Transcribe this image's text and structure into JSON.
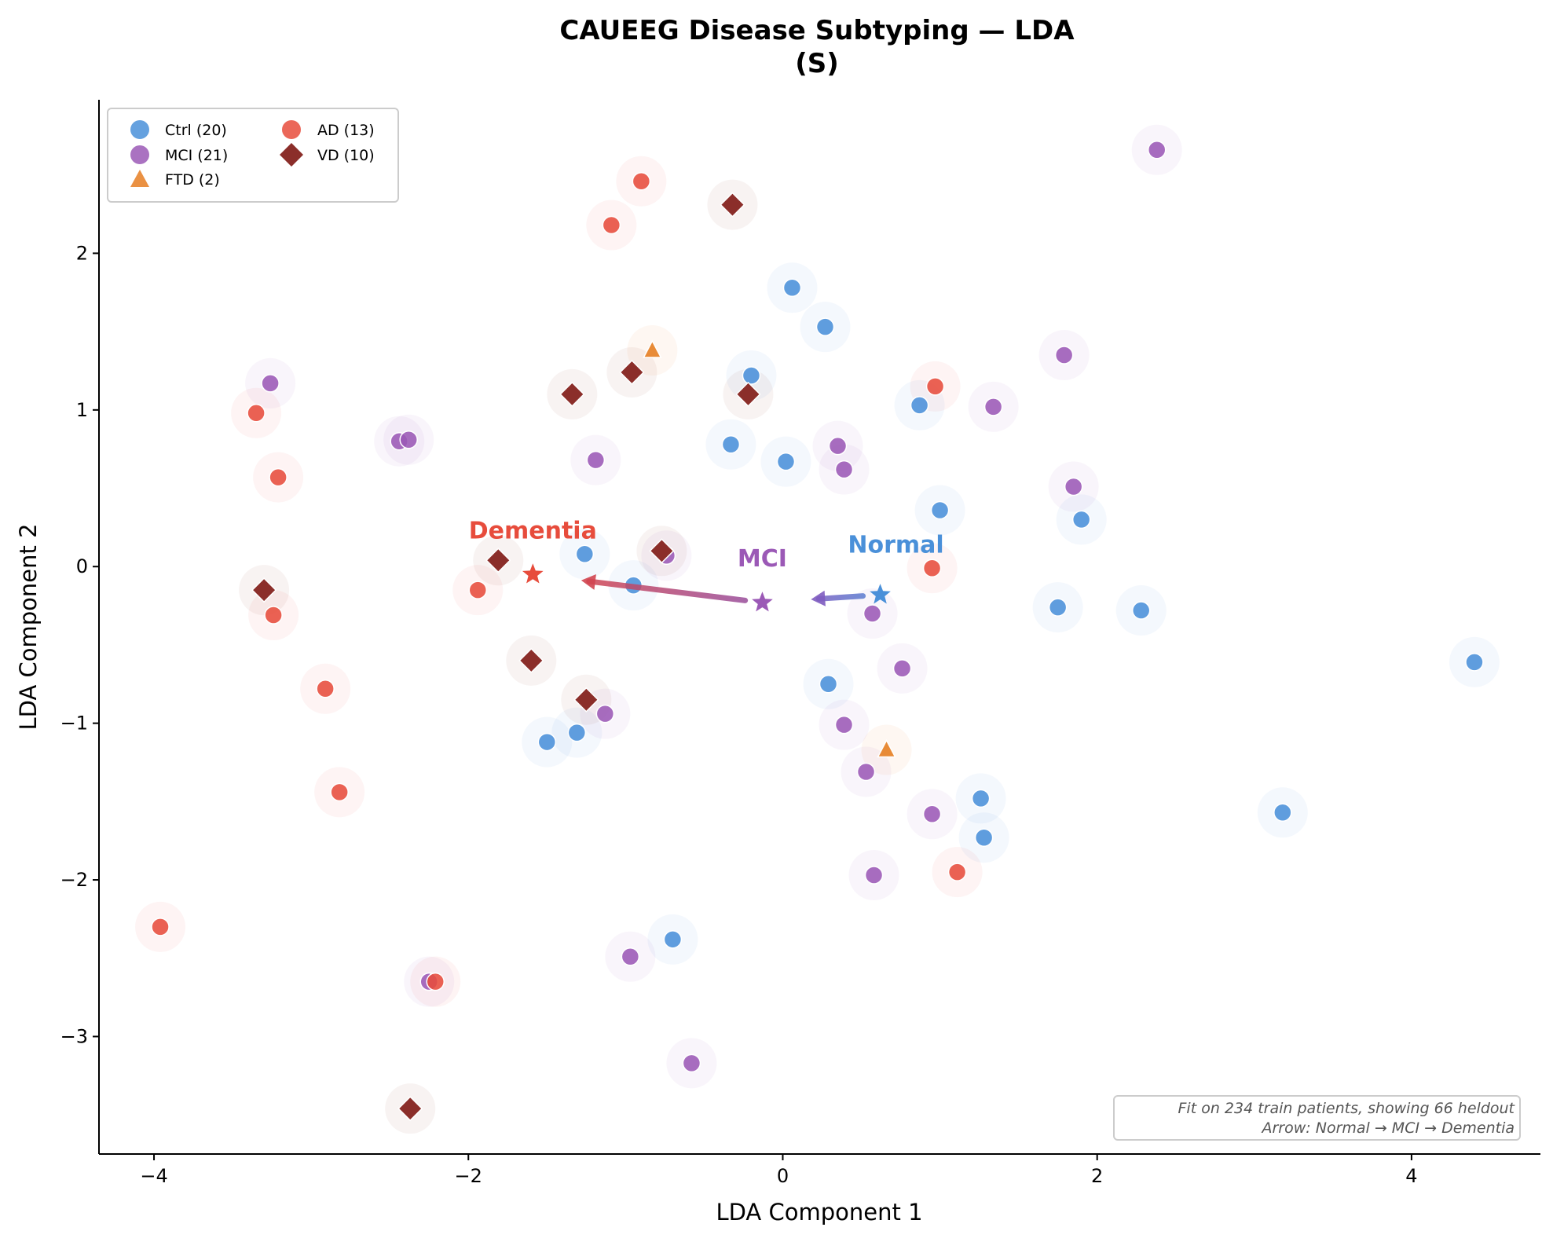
{
  "chart_data": {
    "type": "scatter",
    "title": "CAUEEG Disease Subtyping — LDA",
    "subtitle": "(S)",
    "xlabel": "LDA Component 1",
    "ylabel": "LDA Component 2",
    "xlim": [
      -4.35,
      4.82
    ],
    "ylim": [
      -3.75,
      2.98
    ],
    "xticks": [
      -4,
      -2,
      0,
      2,
      4
    ],
    "yticks": [
      -3,
      -2,
      -1,
      0,
      1,
      2
    ],
    "grid": false,
    "legend_position": "top-left",
    "colors": {
      "ctrl": "#4a90d9",
      "mci": "#9b59b6",
      "ftd": "#e67e22",
      "ad": "#e74c3c",
      "vd": "#8b2e2a",
      "arrow_start": "#5b7bd0",
      "arrow_end": "#d24550"
    },
    "series": [
      {
        "name": "Ctrl (20)",
        "key": "ctrl",
        "marker": "circle",
        "color": "#4a90d9",
        "points": [
          [
            0.06,
            1.78
          ],
          [
            0.27,
            1.53
          ],
          [
            -0.2,
            1.22
          ],
          [
            0.87,
            1.03
          ],
          [
            -0.33,
            0.78
          ],
          [
            0.02,
            0.67
          ],
          [
            1.0,
            0.36
          ],
          [
            1.9,
            0.3
          ],
          [
            -1.26,
            0.08
          ],
          [
            -0.95,
            -0.12
          ],
          [
            1.75,
            -0.26
          ],
          [
            2.28,
            -0.28
          ],
          [
            4.4,
            -0.61
          ],
          [
            0.29,
            -0.75
          ],
          [
            -1.5,
            -1.12
          ],
          [
            -1.31,
            -1.06
          ],
          [
            1.26,
            -1.48
          ],
          [
            3.18,
            -1.57
          ],
          [
            1.28,
            -1.73
          ],
          [
            -0.7,
            -2.38
          ]
        ]
      },
      {
        "name": "MCI (21)",
        "key": "mci",
        "marker": "circle",
        "color": "#9b59b6",
        "points": [
          [
            2.38,
            2.66
          ],
          [
            -3.26,
            1.17
          ],
          [
            1.79,
            1.35
          ],
          [
            1.34,
            1.02
          ],
          [
            -2.44,
            0.8
          ],
          [
            -2.38,
            0.81
          ],
          [
            -1.19,
            0.68
          ],
          [
            0.35,
            0.77
          ],
          [
            0.39,
            0.62
          ],
          [
            1.85,
            0.51
          ],
          [
            -0.74,
            0.07
          ],
          [
            0.57,
            -0.3
          ],
          [
            0.76,
            -0.65
          ],
          [
            -1.13,
            -0.94
          ],
          [
            0.39,
            -1.01
          ],
          [
            0.53,
            -1.31
          ],
          [
            0.95,
            -1.58
          ],
          [
            0.58,
            -1.97
          ],
          [
            -2.25,
            -2.65
          ],
          [
            -0.97,
            -2.49
          ],
          [
            -0.58,
            -3.17
          ]
        ]
      },
      {
        "name": "FTD (2)",
        "key": "ftd",
        "marker": "triangle",
        "color": "#e67e22",
        "points": [
          [
            -0.83,
            1.38
          ],
          [
            0.66,
            -1.17
          ]
        ]
      },
      {
        "name": "AD (13)",
        "key": "ad",
        "marker": "circle",
        "color": "#e74c3c",
        "points": [
          [
            -0.9,
            2.46
          ],
          [
            -1.09,
            2.18
          ],
          [
            0.97,
            1.15
          ],
          [
            -3.35,
            0.98
          ],
          [
            -3.21,
            0.57
          ],
          [
            0.95,
            -0.01
          ],
          [
            -1.94,
            -0.15
          ],
          [
            -3.24,
            -0.31
          ],
          [
            -2.91,
            -0.78
          ],
          [
            -2.82,
            -1.44
          ],
          [
            1.11,
            -1.95
          ],
          [
            -3.96,
            -2.3
          ],
          [
            -2.21,
            -2.65
          ]
        ]
      },
      {
        "name": "VD (10)",
        "key": "vd",
        "marker": "diamond",
        "color": "#8b2e2a",
        "points": [
          [
            -0.32,
            2.31
          ],
          [
            -0.96,
            1.24
          ],
          [
            -1.34,
            1.1
          ],
          [
            -0.22,
            1.1
          ],
          [
            -0.77,
            0.1
          ],
          [
            -1.81,
            0.04
          ],
          [
            -3.3,
            -0.15
          ],
          [
            -1.6,
            -0.6
          ],
          [
            -1.25,
            -0.85
          ],
          [
            -2.37,
            -3.46
          ]
        ]
      }
    ],
    "centroids": [
      {
        "label": "Normal",
        "x": 0.62,
        "y": -0.18,
        "color": "#4a90d9"
      },
      {
        "label": "MCI",
        "x": -0.13,
        "y": -0.23,
        "color": "#9b59b6"
      },
      {
        "label": "Dementia",
        "x": -1.59,
        "y": -0.05,
        "color": "#e74c3c"
      }
    ],
    "centroid_label_offsets": {
      "Normal": [
        0.1,
        0.27
      ],
      "MCI": [
        0.0,
        0.23
      ],
      "Dementia": [
        0.0,
        0.23
      ]
    },
    "annotation": {
      "line1": "Fit on 234 train patients, showing 66 heldout",
      "line2": "Arrow: Normal → MCI → Dementia",
      "position": "bottom-right"
    }
  }
}
